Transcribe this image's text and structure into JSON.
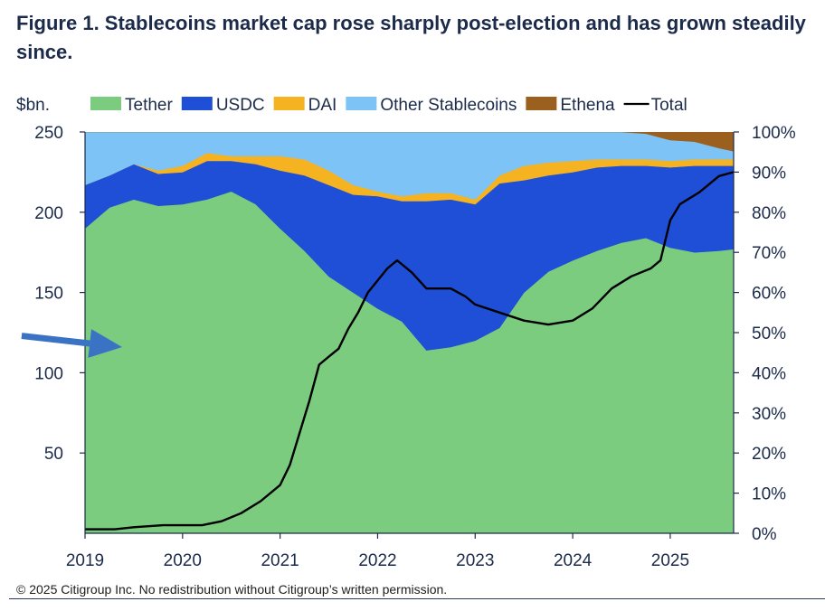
{
  "title": "Figure 1. Stablecoins market cap rose sharply post-election and has grown steadily since.",
  "footer": "© 2025 Citigroup Inc. No redistribution without Citigroup’s written permission.",
  "chart_data": {
    "type": "area",
    "title": "Figure 1. Stablecoins market cap rose sharply post-election and has grown steadily since.",
    "ylabel_left": "$bn.",
    "xlim": [
      2019,
      2025.65
    ],
    "ylim_left": [
      0,
      250
    ],
    "ylim_right": [
      0,
      100
    ],
    "x_ticks": [
      2019,
      2020,
      2021,
      2022,
      2023,
      2024,
      2025
    ],
    "y_ticks_left": [
      50,
      100,
      150,
      200,
      250
    ],
    "y_ticks_right": [
      "0%",
      "10%",
      "20%",
      "30%",
      "40%",
      "50%",
      "60%",
      "70%",
      "80%",
      "90%",
      "100%"
    ],
    "colors": {
      "Tether": "#7ccc7f",
      "USDC": "#1f4fd6",
      "DAI": "#f6b321",
      "Other Stablecoins": "#7ec3f5",
      "Ethena": "#9b5f1e",
      "Total": "#000000",
      "arrow": "#3a72c4"
    },
    "legend": [
      "Tether",
      "USDC",
      "DAI",
      "Other Stablecoins",
      "Ethena",
      "Total"
    ],
    "x": [
      2019.0,
      2019.25,
      2019.5,
      2019.75,
      2020.0,
      2020.25,
      2020.5,
      2020.75,
      2021.0,
      2021.25,
      2021.5,
      2021.75,
      2022.0,
      2022.25,
      2022.5,
      2022.75,
      2023.0,
      2023.25,
      2023.5,
      2023.75,
      2024.0,
      2024.25,
      2024.5,
      2024.75,
      2025.0,
      2025.25,
      2025.5,
      2025.65
    ],
    "series_stacked_bn": [
      {
        "name": "Tether",
        "values": [
          190,
          203,
          208,
          204,
          205,
          208,
          213,
          205,
          190,
          176,
          160,
          150,
          140,
          132,
          114,
          116,
          120,
          128,
          150,
          163,
          170,
          176,
          181,
          184,
          178,
          175,
          176,
          177
        ]
      },
      {
        "name": "USDC",
        "values": [
          27,
          20,
          22,
          20,
          20,
          24,
          19,
          25,
          36,
          47,
          57,
          61,
          70,
          75,
          93,
          92,
          85,
          90,
          70,
          60,
          55,
          52,
          48,
          45,
          50,
          54,
          53,
          52
        ]
      },
      {
        "name": "DAI",
        "values": [
          0,
          0,
          0,
          2,
          4,
          5,
          3,
          5,
          9,
          10,
          9,
          6,
          3,
          3,
          5,
          4,
          3,
          5,
          9,
          8,
          7,
          5,
          4,
          4,
          4,
          4,
          4,
          4
        ]
      },
      {
        "name": "Other Stablecoins",
        "values": [
          33,
          27,
          20,
          24,
          21,
          13,
          15,
          15,
          15,
          17,
          24,
          33,
          37,
          40,
          38,
          38,
          42,
          27,
          21,
          19,
          18,
          17,
          17,
          16,
          13,
          11,
          7,
          5
        ]
      },
      {
        "name": "Ethena",
        "values": [
          0,
          0,
          0,
          0,
          0,
          0,
          0,
          0,
          0,
          0,
          0,
          0,
          0,
          0,
          0,
          0,
          0,
          0,
          0,
          0,
          0,
          0,
          0,
          1,
          5,
          6,
          10,
          12
        ]
      }
    ],
    "total_line_pct": {
      "x": [
        2019.0,
        2019.3,
        2019.5,
        2019.8,
        2020.0,
        2020.2,
        2020.4,
        2020.6,
        2020.8,
        2021.0,
        2021.1,
        2021.2,
        2021.3,
        2021.4,
        2021.5,
        2021.6,
        2021.7,
        2021.8,
        2021.9,
        2022.0,
        2022.1,
        2022.2,
        2022.35,
        2022.5,
        2022.75,
        2022.9,
        2023.0,
        2023.25,
        2023.5,
        2023.75,
        2024.0,
        2024.2,
        2024.4,
        2024.6,
        2024.8,
        2024.9,
        2025.0,
        2025.1,
        2025.3,
        2025.5,
        2025.65
      ],
      "values": [
        1,
        1,
        1.5,
        2,
        2,
        2,
        3,
        5,
        8,
        12,
        17,
        25,
        33,
        42,
        44,
        46,
        51,
        55,
        60,
        63,
        66,
        68,
        65,
        61,
        61,
        59,
        57,
        55,
        53,
        52,
        53,
        56,
        61,
        64,
        66,
        68,
        78,
        82,
        85,
        89,
        90
      ]
    },
    "annotation": {
      "type": "arrow",
      "from": [
        2018.35,
        123
      ],
      "to": [
        2019.38,
        116
      ]
    }
  }
}
